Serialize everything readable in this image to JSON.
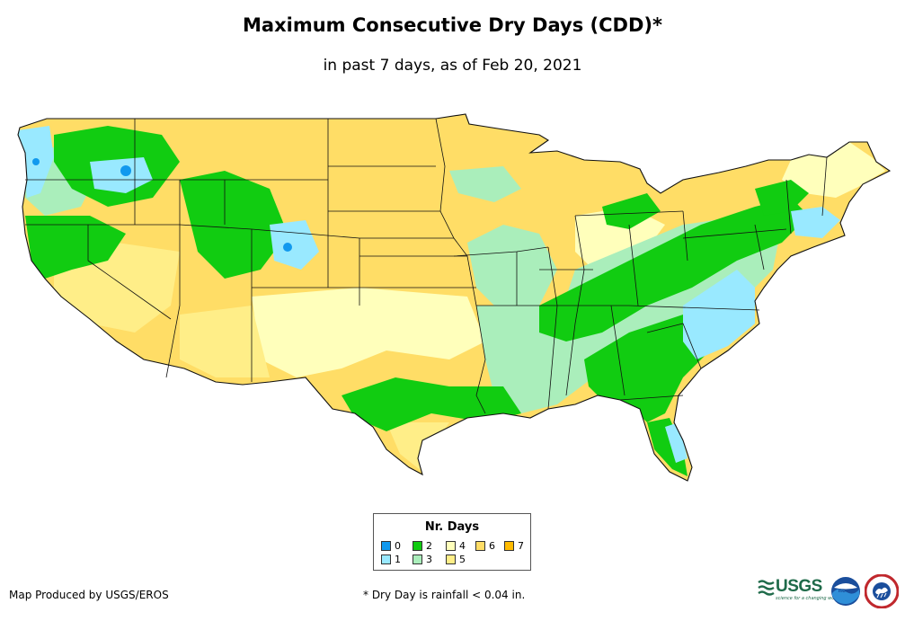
{
  "title": "Maximum Consecutive Dry Days (CDD)*",
  "subtitle": "in past 7 days, as of Feb 20, 2021",
  "legend": {
    "title": "Nr. Days",
    "items": [
      {
        "label": "0",
        "color": "#1199ee"
      },
      {
        "label": "1",
        "color": "#99e9ff"
      },
      {
        "label": "2",
        "color": "#11cc11"
      },
      {
        "label": "3",
        "color": "#aaeebb"
      },
      {
        "label": "4",
        "color": "#ffffbb"
      },
      {
        "label": "5",
        "color": "#ffee88"
      },
      {
        "label": "6",
        "color": "#ffdd66"
      },
      {
        "label": "7",
        "color": "#ffbb00"
      }
    ]
  },
  "credit": "Map Produced by USGS/EROS",
  "footnote": "* Dry Day is rainfall < 0.04 in.",
  "logos": {
    "usgs": "USGS",
    "usgs_tagline": "science for a changing world",
    "noaa": "noaa"
  }
}
